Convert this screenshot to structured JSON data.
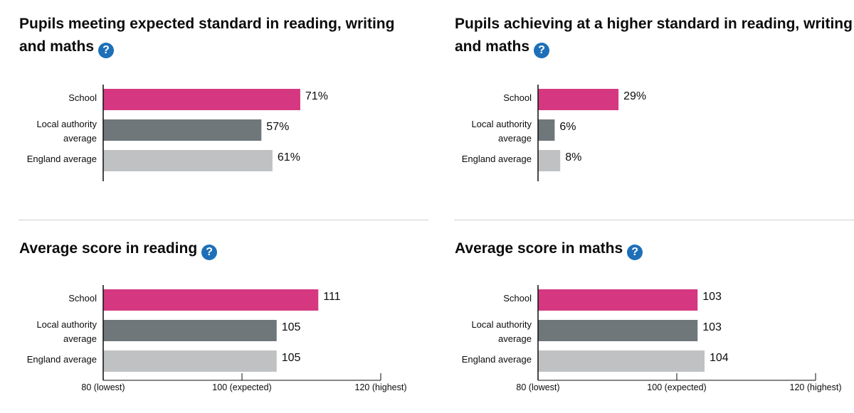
{
  "chart_data": [
    {
      "type": "bar",
      "orientation": "horizontal",
      "title": "Pupils meeting expected standard in reading, writing and maths",
      "help_icon": "help-icon",
      "categories": [
        [
          "School"
        ],
        [
          "Local authority",
          "average"
        ],
        [
          "England average"
        ]
      ],
      "values": [
        71,
        57,
        61
      ],
      "value_labels": [
        "71%",
        "57%",
        "61%"
      ],
      "xlim": [
        0,
        100
      ],
      "colors": [
        "#d53880",
        "#6f777b",
        "#bfc1c3"
      ]
    },
    {
      "type": "bar",
      "orientation": "horizontal",
      "title": "Pupils achieving at a higher standard in reading, writing and maths",
      "help_icon": "help-icon",
      "categories": [
        [
          "School"
        ],
        [
          "Local authority",
          "average"
        ],
        [
          "England average"
        ]
      ],
      "values": [
        29,
        6,
        8
      ],
      "value_labels": [
        "29%",
        "6%",
        "8%"
      ],
      "xlim": [
        0,
        100
      ],
      "colors": [
        "#d53880",
        "#6f777b",
        "#bfc1c3"
      ]
    },
    {
      "type": "bar",
      "orientation": "horizontal",
      "title": "Average score in reading",
      "help_icon": "help-icon",
      "categories": [
        [
          "School"
        ],
        [
          "Local authority",
          "average"
        ],
        [
          "England average"
        ]
      ],
      "values": [
        111,
        105,
        105
      ],
      "value_labels": [
        "111",
        "105",
        "105"
      ],
      "xlim": [
        80,
        120
      ],
      "xticks": [
        80,
        100,
        120
      ],
      "xtick_labels": [
        "80 (lowest)",
        "100 (expected)",
        "120 (highest)"
      ],
      "colors": [
        "#d53880",
        "#6f777b",
        "#bfc1c3"
      ]
    },
    {
      "type": "bar",
      "orientation": "horizontal",
      "title": "Average score in maths",
      "help_icon": "help-icon",
      "categories": [
        [
          "School"
        ],
        [
          "Local authority",
          "average"
        ],
        [
          "England average"
        ]
      ],
      "values": [
        103,
        103,
        104
      ],
      "value_labels": [
        "103",
        "103",
        "104"
      ],
      "xlim": [
        80,
        120
      ],
      "xticks": [
        80,
        100,
        120
      ],
      "xtick_labels": [
        "80 (lowest)",
        "100 (expected)",
        "120 (highest)"
      ],
      "colors": [
        "#d53880",
        "#6f777b",
        "#bfc1c3"
      ]
    }
  ]
}
